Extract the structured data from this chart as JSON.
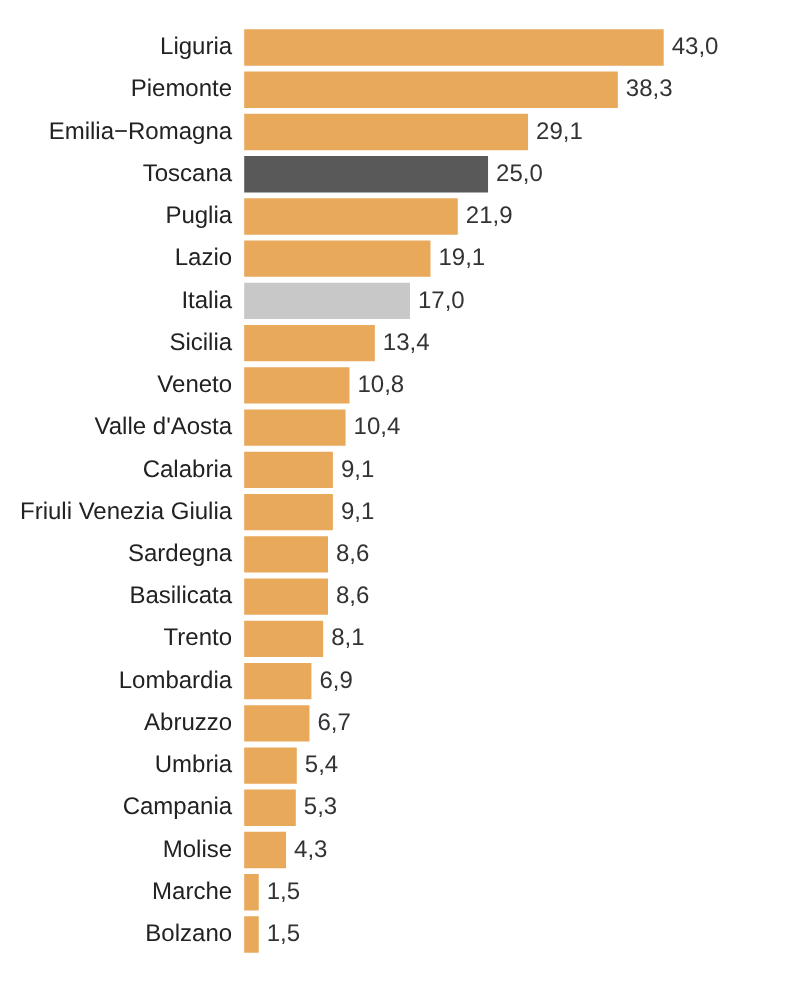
{
  "chart_data": {
    "type": "bar",
    "orientation": "horizontal",
    "categories": [
      "Liguria",
      "Piemonte",
      "Emilia−Romagna",
      "Toscana",
      "Puglia",
      "Lazio",
      "Italia",
      "Sicilia",
      "Veneto",
      "Valle d'Aosta",
      "Calabria",
      "Friuli Venezia Giulia",
      "Sardegna",
      "Basilicata",
      "Trento",
      "Lombardia",
      "Abruzzo",
      "Umbria",
      "Campania",
      "Molise",
      "Marche",
      "Bolzano"
    ],
    "values": [
      43.0,
      38.3,
      29.1,
      25.0,
      21.9,
      19.1,
      17.0,
      13.4,
      10.8,
      10.4,
      9.1,
      9.1,
      8.6,
      8.6,
      8.1,
      6.9,
      6.7,
      5.4,
      5.3,
      4.3,
      1.5,
      1.5
    ],
    "value_labels": [
      "43,0",
      "38,3",
      "29,1",
      "25,0",
      "21,9",
      "19,1",
      "17,0",
      "13,4",
      "10,8",
      "10,4",
      "9,1",
      "9,1",
      "8,6",
      "8,6",
      "8,1",
      "6,9",
      "6,7",
      "5,4",
      "5,3",
      "4,3",
      "1,5",
      "1,5"
    ],
    "colors": [
      "#e9a95b",
      "#e9a95b",
      "#e9a95b",
      "#595959",
      "#e9a95b",
      "#e9a95b",
      "#c8c8c8",
      "#e9a95b",
      "#e9a95b",
      "#e9a95b",
      "#e9a95b",
      "#e9a95b",
      "#e9a95b",
      "#e9a95b",
      "#e9a95b",
      "#e9a95b",
      "#e9a95b",
      "#e9a95b",
      "#e9a95b",
      "#e9a95b",
      "#e9a95b",
      "#e9a95b"
    ],
    "grid": false,
    "legend": false
  }
}
